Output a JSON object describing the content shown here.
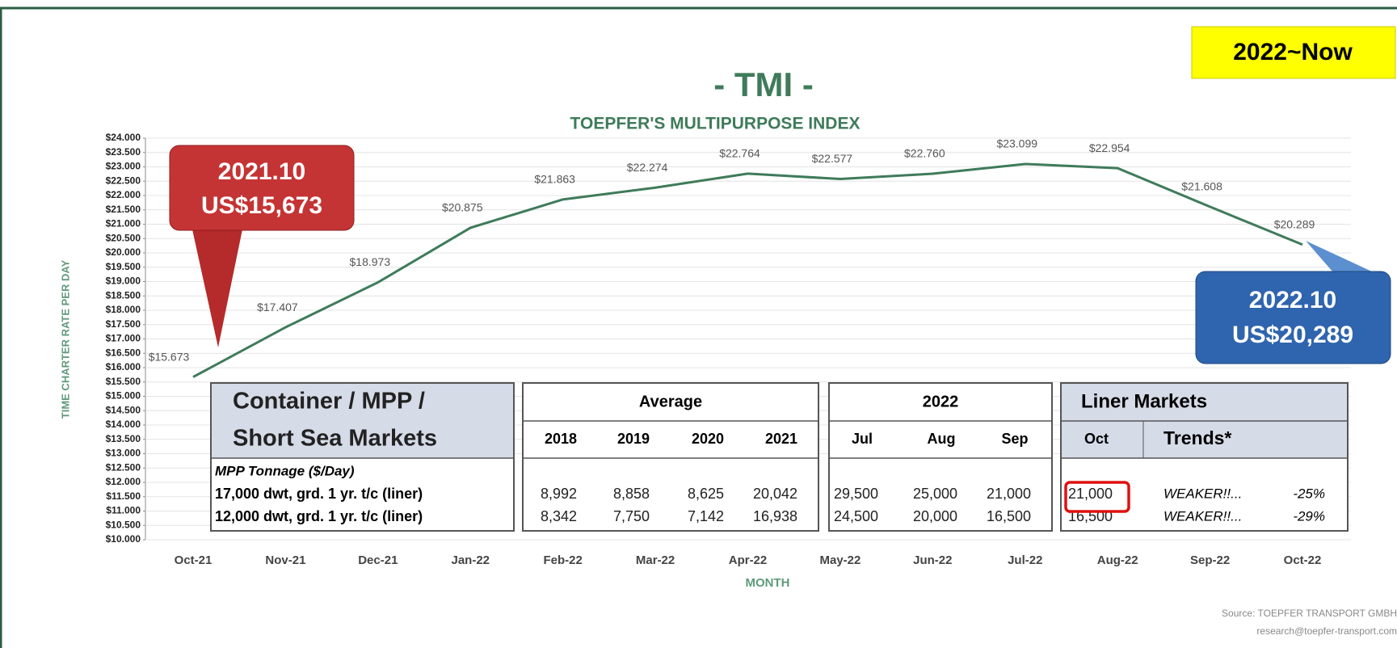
{
  "chart_data": {
    "type": "line",
    "title": "- TMI -",
    "subtitle": "TOEPFER'S MULTIPURPOSE INDEX",
    "y_label": "TIME CHARTER RATE PER DAY",
    "x_label": "MONTH",
    "categories": [
      "Oct-21",
      "Nov-21",
      "Dec-21",
      "Jan-22",
      "Feb-22",
      "Mar-22",
      "Apr-22",
      "May-22",
      "Jun-22",
      "Jul-22",
      "Aug-22",
      "Sep-22",
      "Oct-22"
    ],
    "values": [
      15673,
      17407,
      18973,
      20875,
      21863,
      22274,
      22764,
      22577,
      22760,
      23099,
      22954,
      21608,
      20289
    ],
    "value_labels": [
      "$15.673",
      "$17.407",
      "$18.973",
      "$20.875",
      "$21.863",
      "$22.274",
      "$22.764",
      "$22.577",
      "$22.760",
      "$23.099",
      "$22.954",
      "$21.608",
      "$20.289"
    ],
    "color": "#3f7b5a",
    "ylim": [
      10000,
      24000
    ],
    "yticks": [
      {
        "value": 10000,
        "label": "$10.000"
      },
      {
        "value": 10500,
        "label": "$10.500"
      },
      {
        "value": 11000,
        "label": "$11.000"
      },
      {
        "value": 11500,
        "label": "$11.500"
      },
      {
        "value": 12000,
        "label": "$12.000"
      },
      {
        "value": 12500,
        "label": "$12.500"
      },
      {
        "value": 13000,
        "label": "$13.000"
      },
      {
        "value": 13500,
        "label": "$13.500"
      },
      {
        "value": 14000,
        "label": "$14.000"
      },
      {
        "value": 14500,
        "label": "$14.500"
      },
      {
        "value": 15000,
        "label": "$15.000"
      },
      {
        "value": 15500,
        "label": "$15.500"
      },
      {
        "value": 16000,
        "label": "$16.000"
      },
      {
        "value": 16500,
        "label": "$16.500"
      },
      {
        "value": 17000,
        "label": "$17.000"
      },
      {
        "value": 17500,
        "label": "$17.500"
      },
      {
        "value": 18000,
        "label": "$18.000"
      },
      {
        "value": 18500,
        "label": "$18.500"
      },
      {
        "value": 19000,
        "label": "$19.000"
      },
      {
        "value": 19500,
        "label": "$19.500"
      },
      {
        "value": 20000,
        "label": "$20.000"
      },
      {
        "value": 20500,
        "label": "$20.500"
      },
      {
        "value": 21000,
        "label": "$21.000"
      },
      {
        "value": 21500,
        "label": "$21.500"
      },
      {
        "value": 22000,
        "label": "$22.000"
      },
      {
        "value": 22500,
        "label": "$22.500"
      },
      {
        "value": 23000,
        "label": "$23.000"
      },
      {
        "value": 23500,
        "label": "$23.500"
      },
      {
        "value": 24000,
        "label": "$24.000"
      }
    ],
    "grid": true
  },
  "annotations": {
    "period": "2022~Now",
    "callout_start": [
      "2021.10",
      "US$15,673"
    ],
    "callout_end": [
      "2022.10",
      "US$20,289"
    ]
  },
  "table": {
    "header_left": [
      "Container / MPP /",
      "Short Sea Markets"
    ],
    "groups": [
      "Average",
      "2022",
      "Liner Markets"
    ],
    "columns": [
      "2018",
      "2019",
      "2020",
      "2021",
      "Jul",
      "Aug",
      "Sep",
      "Oct",
      "Trends*"
    ],
    "section": "MPP Tonnage  ($/Day)",
    "rows": [
      [
        "17,000 dwt, grd. 1 yr. t/c (liner)",
        "8,992",
        "8,858",
        "8,625",
        "20,042",
        "29,500",
        "25,000",
        "21,000",
        "21,000",
        "WEAKER!!...",
        "-25%"
      ],
      [
        "12,000 dwt, grd. 1 yr. t/c (liner)",
        "8,342",
        "7,750",
        "7,142",
        "16,938",
        "24,500",
        "20,000",
        "16,500",
        "16,500",
        "WEAKER!!...",
        "-29%"
      ]
    ]
  },
  "source": [
    "Source: TOEPFER TRANSPORT GMBH",
    "research@toepfer-transport.com"
  ]
}
